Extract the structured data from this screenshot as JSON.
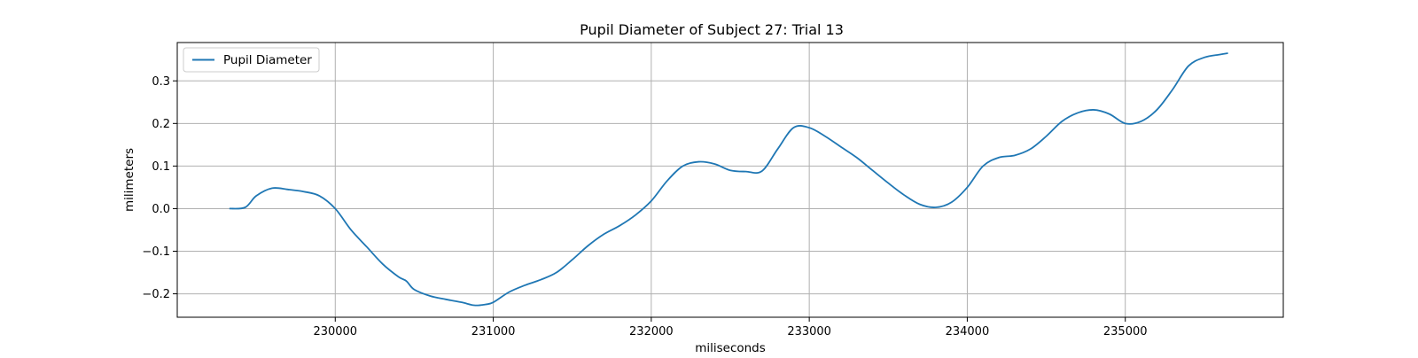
{
  "chart_data": {
    "type": "line",
    "title": "Pupil Diameter of Subject 27: Trial 13",
    "xlabel": "miliseconds",
    "ylabel": "milimeters",
    "xlim": [
      229000,
      236000
    ],
    "ylim": [
      -0.255,
      0.39
    ],
    "xticks": [
      230000,
      231000,
      232000,
      233000,
      234000,
      235000
    ],
    "yticks": [
      -0.2,
      -0.1,
      0.0,
      0.1,
      0.2,
      0.3
    ],
    "ytick_labels": [
      "−0.2",
      "−0.1",
      "0.0",
      "0.1",
      "0.2",
      "0.3"
    ],
    "grid": true,
    "legend": {
      "position": "top-left",
      "entries": [
        "Pupil Diameter"
      ]
    },
    "series": [
      {
        "name": "Pupil Diameter",
        "color": "#1f77b4",
        "x": [
          229330,
          229430,
          229500,
          229600,
          229700,
          229800,
          229900,
          230000,
          230100,
          230200,
          230300,
          230400,
          230450,
          230500,
          230600,
          230700,
          230800,
          230880,
          230950,
          231000,
          231100,
          231200,
          231300,
          231400,
          231500,
          231600,
          231700,
          231800,
          231900,
          232000,
          232100,
          232200,
          232300,
          232400,
          232500,
          232600,
          232700,
          232800,
          232900,
          233000,
          233100,
          233200,
          233300,
          233400,
          233500,
          233600,
          233700,
          233800,
          233900,
          234000,
          234100,
          234200,
          234300,
          234400,
          234500,
          234600,
          234700,
          234800,
          234900,
          235000,
          235100,
          235200,
          235300,
          235400,
          235500,
          235600,
          235650
        ],
        "values": [
          0.0,
          0.003,
          0.03,
          0.048,
          0.045,
          0.04,
          0.03,
          0.0,
          -0.05,
          -0.09,
          -0.13,
          -0.16,
          -0.17,
          -0.19,
          -0.205,
          -0.213,
          -0.22,
          -0.227,
          -0.225,
          -0.22,
          -0.196,
          -0.18,
          -0.167,
          -0.15,
          -0.12,
          -0.087,
          -0.06,
          -0.04,
          -0.015,
          0.018,
          0.065,
          0.1,
          0.11,
          0.105,
          0.09,
          0.087,
          0.088,
          0.14,
          0.19,
          0.19,
          0.17,
          0.145,
          0.12,
          0.09,
          0.06,
          0.032,
          0.01,
          0.003,
          0.015,
          0.05,
          0.1,
          0.12,
          0.125,
          0.14,
          0.17,
          0.205,
          0.225,
          0.232,
          0.222,
          0.2,
          0.205,
          0.232,
          0.28,
          0.335,
          0.355,
          0.362,
          0.365
        ]
      }
    ]
  }
}
